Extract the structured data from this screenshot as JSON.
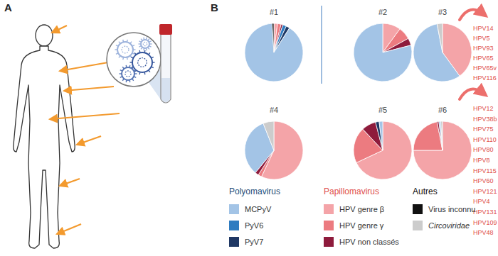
{
  "panel_labels": [
    "A",
    "B"
  ],
  "chart_data": [
    {
      "type": "pie",
      "title": "#1",
      "categories": [
        "HPV genre β",
        "HPV genre γ",
        "HPV non classés",
        "PyV6",
        "PyV7",
        "MCPyV",
        "Virus inconnu",
        "Circoviridae"
      ],
      "values": [
        2,
        2,
        1,
        2,
        2,
        90,
        1,
        0
      ],
      "colors": [
        "#f4a4a8",
        "#ec7b80",
        "#8e1b3c",
        "#2f7cc0",
        "#1f3864",
        "#a3c4e6",
        "#111111",
        "#cccccc"
      ]
    },
    {
      "type": "pie",
      "title": "#2",
      "categories": [
        "HPV genre β",
        "HPV genre γ",
        "HPV non classés",
        "PyV6",
        "PyV7",
        "MCPyV",
        "Virus inconnu",
        "Circoviridae"
      ],
      "values": [
        10,
        7,
        4,
        0,
        0,
        79,
        0,
        0
      ],
      "colors": [
        "#f4a4a8",
        "#ec7b80",
        "#8e1b3c",
        "#2f7cc0",
        "#1f3864",
        "#a3c4e6",
        "#111111",
        "#cccccc"
      ]
    },
    {
      "type": "pie",
      "title": "#3",
      "categories": [
        "HPV genre β",
        "HPV genre γ",
        "HPV non classés",
        "PyV6",
        "PyV7",
        "MCPyV",
        "Virus inconnu",
        "Circoviridae"
      ],
      "values": [
        40,
        0,
        0,
        0,
        0,
        57,
        0,
        3
      ],
      "colors": [
        "#f4a4a8",
        "#ec7b80",
        "#8e1b3c",
        "#2f7cc0",
        "#1f3864",
        "#a3c4e6",
        "#111111",
        "#cccccc"
      ]
    },
    {
      "type": "pie",
      "title": "#4",
      "categories": [
        "HPV genre β",
        "HPV genre γ",
        "HPV non classés",
        "PyV6",
        "PyV7",
        "MCPyV",
        "Virus inconnu",
        "Circoviridae"
      ],
      "values": [
        57,
        2,
        2,
        0,
        0,
        33,
        0,
        6
      ],
      "colors": [
        "#f4a4a8",
        "#ec7b80",
        "#8e1b3c",
        "#2f7cc0",
        "#1f3864",
        "#a3c4e6",
        "#111111",
        "#cccccc"
      ]
    },
    {
      "type": "pie",
      "title": "#5",
      "categories": [
        "HPV genre β",
        "HPV genre γ",
        "HPV non classés",
        "PyV6",
        "PyV7",
        "MCPyV",
        "Virus inconnu",
        "Circoviridae"
      ],
      "values": [
        68,
        20,
        8,
        0,
        2,
        2,
        0,
        0
      ],
      "colors": [
        "#f4a4a8",
        "#ec7b80",
        "#8e1b3c",
        "#2f7cc0",
        "#1f3864",
        "#a3c4e6",
        "#111111",
        "#cccccc"
      ]
    },
    {
      "type": "pie",
      "title": "#6",
      "categories": [
        "HPV genre β",
        "HPV genre γ",
        "HPV non classés",
        "PyV6",
        "PyV7",
        "MCPyV",
        "Virus inconnu",
        "Circoviridae"
      ],
      "values": [
        75,
        22,
        1,
        0,
        0,
        1,
        0,
        1
      ],
      "colors": [
        "#f4a4a8",
        "#ec7b80",
        "#8e1b3c",
        "#2f7cc0",
        "#1f3864",
        "#a3c4e6",
        "#111111",
        "#cccccc"
      ]
    }
  ],
  "legend_groups": [
    {
      "title": "Polyomavirus",
      "color": "#1f4e79",
      "items": [
        "MCPyV",
        "PyV6",
        "PyV7"
      ]
    },
    {
      "title": "Papillomavirus",
      "color": "#e0504c",
      "items": [
        "HPV genre β",
        "HPV genre γ",
        "HPV non classés"
      ]
    },
    {
      "title": "Autres",
      "color": "#111111",
      "items": [
        "Virus inconnu",
        "Circoviridae"
      ]
    }
  ],
  "hpv_lists": [
    [
      "HPV14",
      "HPV5",
      "HPV93",
      "HPV65",
      "HPV65v",
      "HPV116"
    ],
    [
      "HPV12",
      "HPV38b",
      "HPV75",
      "HPV110",
      "HPV80",
      "HPV8",
      "HPV115",
      "HPV60",
      "HPV121",
      "HPV4",
      "HPV131",
      "HPV109",
      "HPV48"
    ]
  ]
}
